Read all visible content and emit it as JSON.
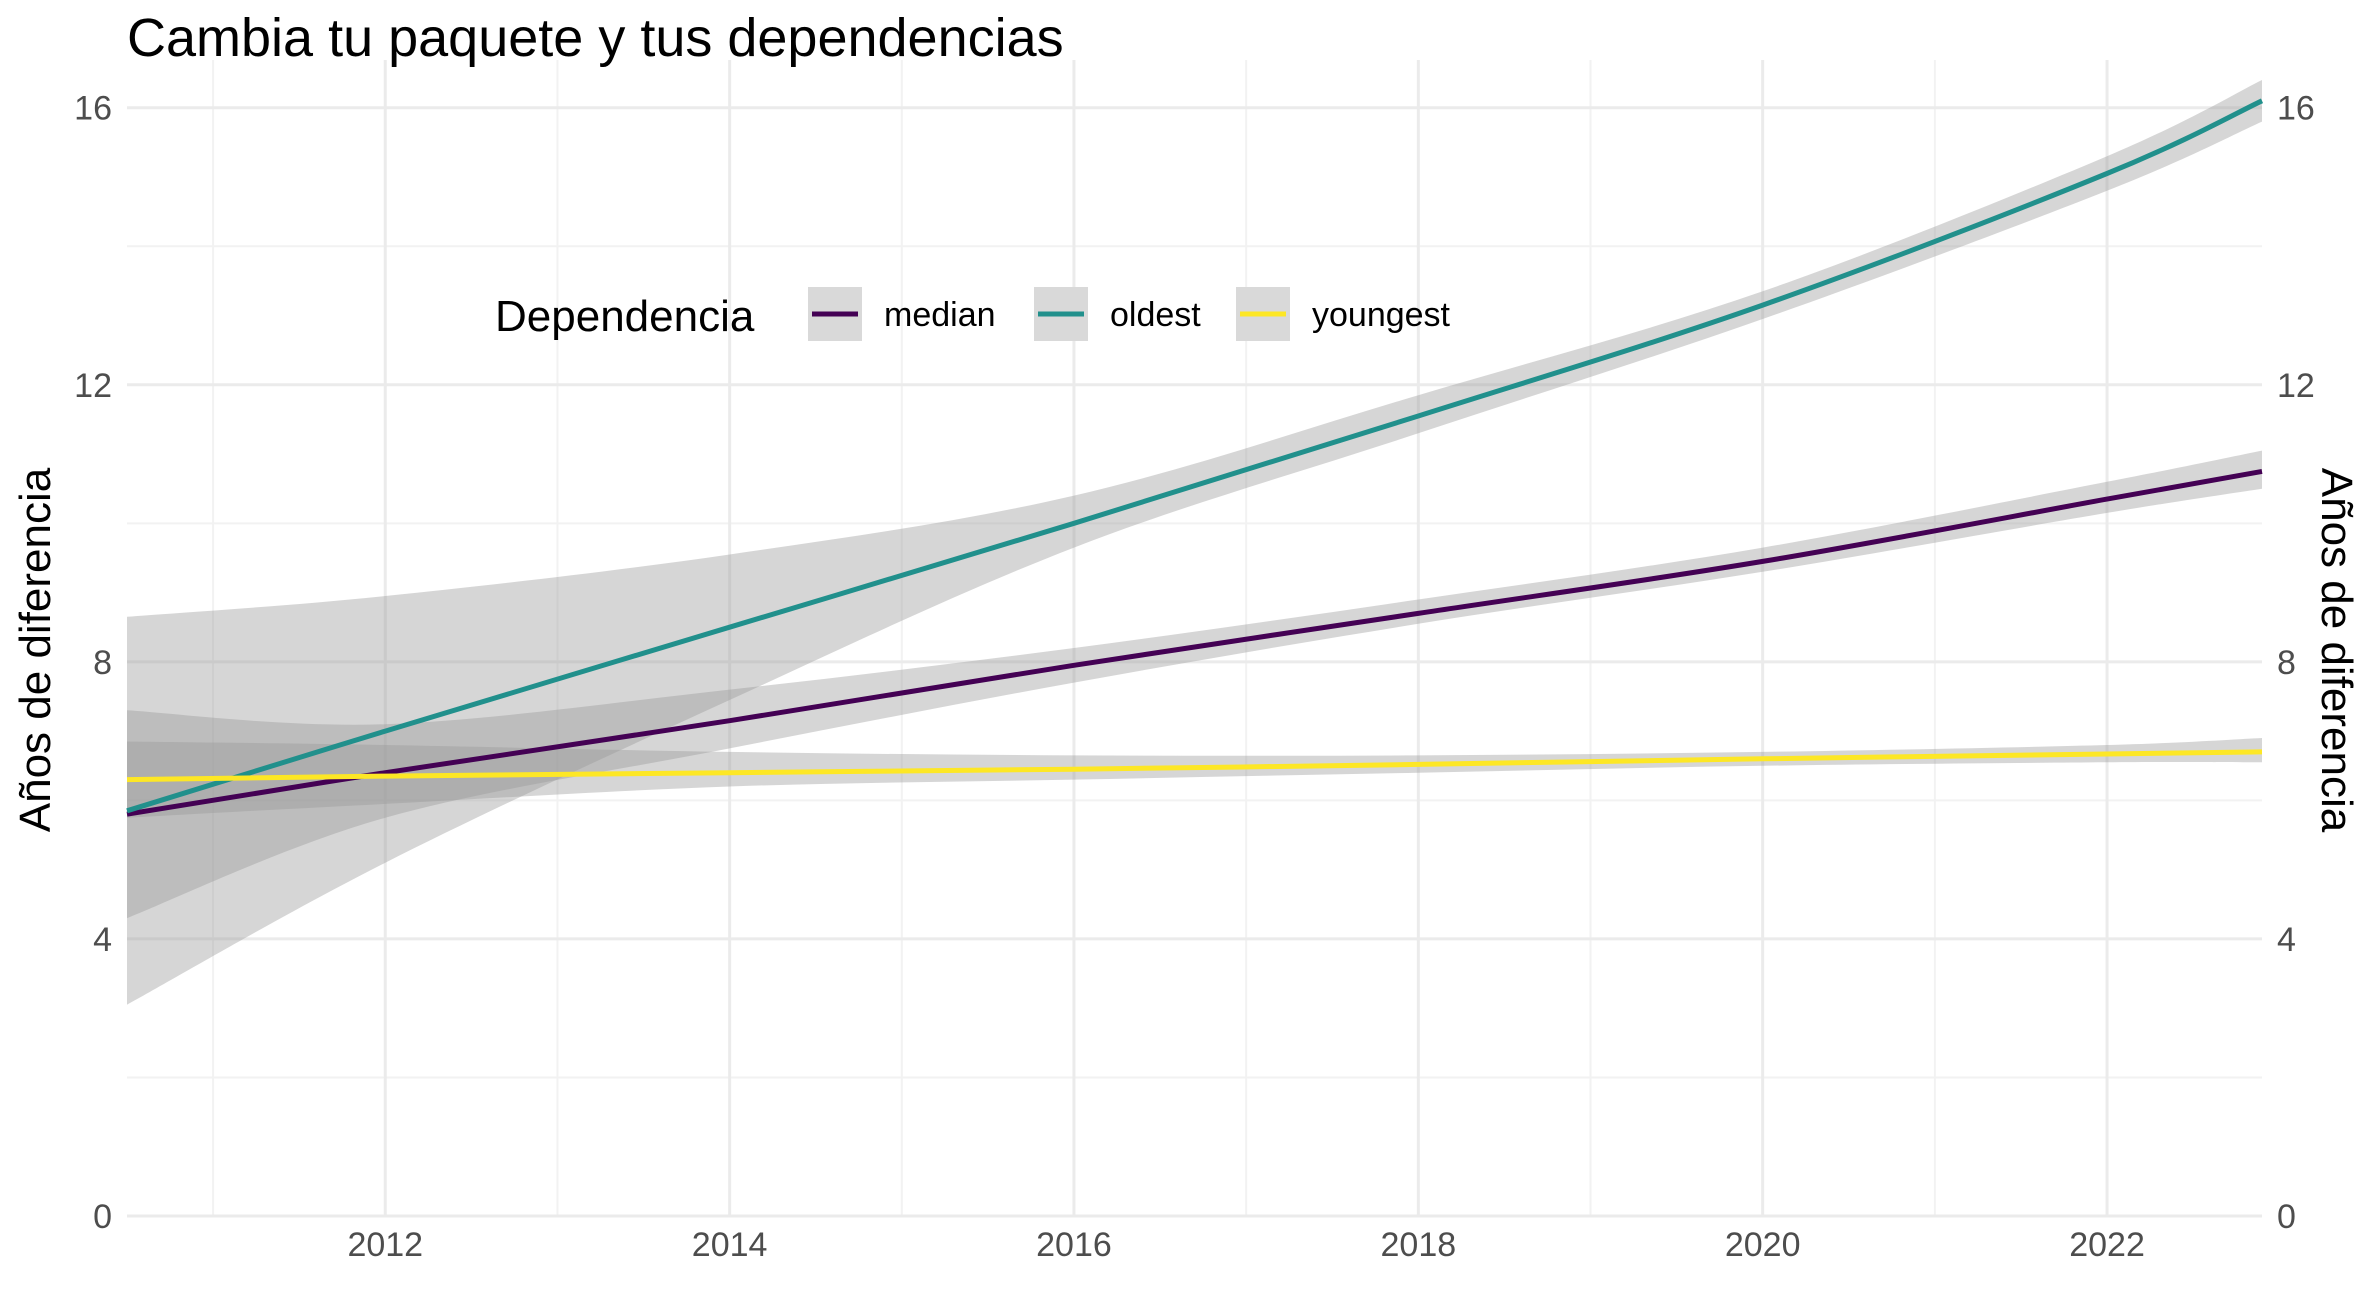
{
  "chart_data": {
    "type": "line",
    "title": "Cambia tu paquete y tus dependencias",
    "ylabel": "Años de diferencia",
    "ylabel_right": "Años de diferencia",
    "xlabel": "",
    "xlim": [
      2010.5,
      2022.9
    ],
    "ylim": [
      0,
      16.4
    ],
    "x_ticks": [
      2012,
      2014,
      2016,
      2018,
      2020,
      2022
    ],
    "x_tick_labels": [
      "2012",
      "2014",
      "2016",
      "2018",
      "2020",
      "2022"
    ],
    "y_ticks": [
      0,
      4,
      8,
      12,
      16
    ],
    "y_tick_labels": [
      "0",
      "4",
      "8",
      "12",
      "16"
    ],
    "grid": true,
    "legend": {
      "title": "Dependencia",
      "position": "top-left, inside plot",
      "entries": [
        "median",
        "oldest",
        "youngest"
      ]
    },
    "series": [
      {
        "name": "median",
        "color": "#440154",
        "x": [
          2010.5,
          2012,
          2014,
          2016,
          2018,
          2020,
          2022,
          2022.9
        ],
        "y": [
          5.8,
          6.4,
          7.15,
          7.95,
          8.7,
          9.45,
          10.35,
          10.75
        ],
        "lower": [
          4.3,
          5.75,
          6.75,
          7.7,
          8.55,
          9.3,
          10.15,
          10.5
        ],
        "upper": [
          7.3,
          7.1,
          7.6,
          8.2,
          8.9,
          9.65,
          10.6,
          11.05
        ]
      },
      {
        "name": "oldest",
        "color": "#21908C",
        "x": [
          2010.5,
          2012,
          2014,
          2016,
          2018,
          2020,
          2022,
          2022.9
        ],
        "y": [
          5.85,
          7.0,
          8.5,
          10.0,
          11.55,
          13.15,
          15.05,
          16.1
        ],
        "lower": [
          3.05,
          5.1,
          7.45,
          9.65,
          11.3,
          12.95,
          14.8,
          15.8
        ],
        "upper": [
          8.65,
          8.95,
          9.55,
          10.4,
          11.85,
          13.35,
          15.3,
          16.4
        ]
      },
      {
        "name": "youngest",
        "color": "#FDE725",
        "x": [
          2010.5,
          2012,
          2014,
          2016,
          2018,
          2020,
          2022,
          2022.9
        ],
        "y": [
          6.3,
          6.35,
          6.4,
          6.45,
          6.52,
          6.6,
          6.67,
          6.7
        ],
        "lower": [
          5.75,
          5.95,
          6.2,
          6.3,
          6.4,
          6.5,
          6.55,
          6.55
        ],
        "upper": [
          6.85,
          6.8,
          6.7,
          6.65,
          6.65,
          6.7,
          6.8,
          6.9
        ]
      }
    ],
    "ribbon_color": "#999999"
  }
}
